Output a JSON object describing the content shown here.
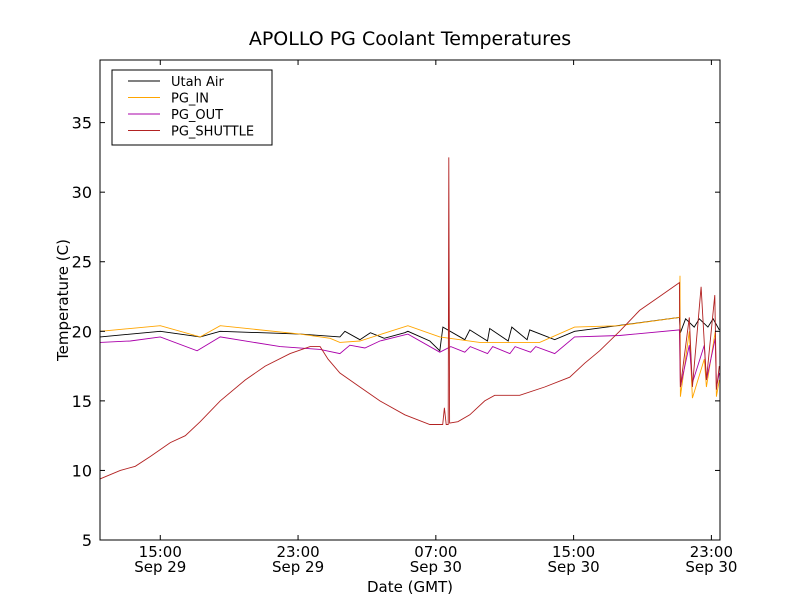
{
  "chart_data": {
    "type": "line",
    "title": "APOLLO PG Coolant Temperatures",
    "xlabel": "Date (GMT)",
    "ylabel": "Temperature (C)",
    "x_units": "hours since Sep 29 00:00 GMT",
    "xlim": [
      11.5,
      47.5
    ],
    "ylim": [
      5,
      39.5
    ],
    "yticks": [
      5,
      10,
      15,
      20,
      25,
      30,
      35
    ],
    "xticks": [
      {
        "x": 15,
        "time": "15:00",
        "date": "Sep 29"
      },
      {
        "x": 23,
        "time": "23:00",
        "date": "Sep 29"
      },
      {
        "x": 31,
        "time": "07:00",
        "date": "Sep 30"
      },
      {
        "x": 39,
        "time": "15:00",
        "date": "Sep 30"
      },
      {
        "x": 47,
        "time": "23:00",
        "date": "Sep 30"
      }
    ],
    "grid": false,
    "legend_position": "top-left",
    "series": [
      {
        "name": "Utah Air",
        "color": "#000000",
        "points": [
          [
            11.52,
            19.6
          ],
          [
            15.0,
            20.0
          ],
          [
            17.32,
            19.6
          ],
          [
            18.48,
            20.0
          ],
          [
            23.12,
            19.8
          ],
          [
            25.43,
            19.6
          ],
          [
            25.72,
            20.0
          ],
          [
            26.59,
            19.4
          ],
          [
            27.2,
            19.9
          ],
          [
            28.0,
            19.5
          ],
          [
            29.2,
            19.9
          ],
          [
            29.38,
            20.0
          ],
          [
            30.65,
            19.3
          ],
          [
            31.23,
            18.6
          ],
          [
            31.41,
            20.3
          ],
          [
            32.68,
            19.4
          ],
          [
            32.97,
            20.1
          ],
          [
            34.0,
            19.3
          ],
          [
            34.13,
            20.2
          ],
          [
            35.2,
            19.3
          ],
          [
            35.41,
            20.3
          ],
          [
            36.3,
            19.4
          ],
          [
            36.45,
            20.1
          ],
          [
            37.9,
            19.4
          ],
          [
            39.06,
            20.0
          ],
          [
            45.14,
            21.0
          ],
          [
            45.2,
            19.9
          ],
          [
            45.5,
            20.9
          ],
          [
            46.0,
            20.3
          ],
          [
            46.3,
            20.9
          ],
          [
            46.8,
            20.3
          ],
          [
            47.1,
            20.9
          ],
          [
            47.46,
            20.1
          ]
        ]
      },
      {
        "name": "PG_IN",
        "color": "#ffa500",
        "points": [
          [
            11.52,
            20.0
          ],
          [
            15.0,
            20.4
          ],
          [
            17.32,
            19.6
          ],
          [
            18.48,
            20.4
          ],
          [
            23.12,
            19.8
          ],
          [
            24.86,
            19.5
          ],
          [
            25.43,
            19.2
          ],
          [
            26.59,
            19.3
          ],
          [
            29.38,
            20.4
          ],
          [
            31.23,
            19.6
          ],
          [
            33.55,
            19.2
          ],
          [
            37.03,
            19.2
          ],
          [
            39.06,
            20.3
          ],
          [
            41.67,
            20.4
          ],
          [
            45.14,
            21.0
          ],
          [
            45.18,
            24.0
          ],
          [
            45.2,
            15.3
          ],
          [
            45.72,
            20.0
          ],
          [
            45.9,
            15.2
          ],
          [
            46.59,
            18.0
          ],
          [
            46.71,
            16.0
          ],
          [
            47.23,
            20.0
          ],
          [
            47.29,
            15.3
          ],
          [
            47.46,
            16.5
          ]
        ]
      },
      {
        "name": "PG_OUT",
        "color": "#aa00aa",
        "points": [
          [
            11.52,
            19.2
          ],
          [
            13.26,
            19.3
          ],
          [
            15.0,
            19.6
          ],
          [
            17.14,
            18.6
          ],
          [
            18.48,
            19.6
          ],
          [
            21.96,
            18.9
          ],
          [
            24.28,
            18.7
          ],
          [
            25.43,
            18.4
          ],
          [
            26.01,
            19.0
          ],
          [
            26.88,
            18.8
          ],
          [
            27.75,
            19.3
          ],
          [
            29.38,
            19.8
          ],
          [
            31.23,
            18.5
          ],
          [
            31.87,
            18.9
          ],
          [
            32.68,
            18.5
          ],
          [
            33.0,
            18.9
          ],
          [
            34.0,
            18.4
          ],
          [
            34.3,
            18.9
          ],
          [
            35.3,
            18.4
          ],
          [
            35.6,
            18.9
          ],
          [
            36.5,
            18.5
          ],
          [
            36.8,
            18.9
          ],
          [
            37.9,
            18.4
          ],
          [
            39.06,
            19.6
          ],
          [
            41.67,
            19.7
          ],
          [
            45.14,
            20.1
          ],
          [
            45.2,
            16.0
          ],
          [
            45.72,
            19.0
          ],
          [
            45.9,
            16.3
          ],
          [
            46.59,
            19.0
          ],
          [
            46.71,
            16.5
          ],
          [
            47.23,
            19.5
          ],
          [
            47.29,
            16.0
          ],
          [
            47.46,
            17.0
          ]
        ]
      },
      {
        "name": "PG_SHUTTLE",
        "color": "#b22222",
        "points": [
          [
            11.52,
            9.4
          ],
          [
            12.68,
            10.0
          ],
          [
            13.55,
            10.3
          ],
          [
            14.42,
            11.0
          ],
          [
            15.58,
            12.0
          ],
          [
            16.45,
            12.5
          ],
          [
            17.32,
            13.5
          ],
          [
            18.48,
            15.0
          ],
          [
            19.93,
            16.5
          ],
          [
            21.09,
            17.5
          ],
          [
            22.54,
            18.4
          ],
          [
            23.7,
            18.9
          ],
          [
            24.28,
            18.9
          ],
          [
            24.74,
            18.0
          ],
          [
            25.43,
            17.0
          ],
          [
            26.59,
            16.0
          ],
          [
            27.75,
            15.0
          ],
          [
            29.2,
            14.0
          ],
          [
            30.65,
            13.3
          ],
          [
            31.4,
            13.3
          ],
          [
            31.5,
            14.5
          ],
          [
            31.6,
            13.3
          ],
          [
            31.72,
            13.3
          ],
          [
            31.75,
            32.5
          ],
          [
            31.8,
            13.4
          ],
          [
            32.28,
            13.5
          ],
          [
            32.97,
            14.0
          ],
          [
            33.84,
            15.0
          ],
          [
            34.42,
            15.4
          ],
          [
            35.87,
            15.4
          ],
          [
            37.32,
            16.0
          ],
          [
            38.77,
            16.7
          ],
          [
            39.64,
            17.7
          ],
          [
            40.51,
            18.6
          ],
          [
            41.67,
            20.0
          ],
          [
            42.83,
            21.5
          ],
          [
            43.99,
            22.5
          ],
          [
            45.14,
            23.5
          ],
          [
            45.2,
            16.0
          ],
          [
            45.72,
            21.0
          ],
          [
            45.9,
            16.0
          ],
          [
            46.4,
            23.2
          ],
          [
            46.71,
            16.5
          ],
          [
            47.2,
            22.6
          ],
          [
            47.29,
            15.8
          ],
          [
            47.46,
            17.5
          ]
        ]
      }
    ]
  }
}
